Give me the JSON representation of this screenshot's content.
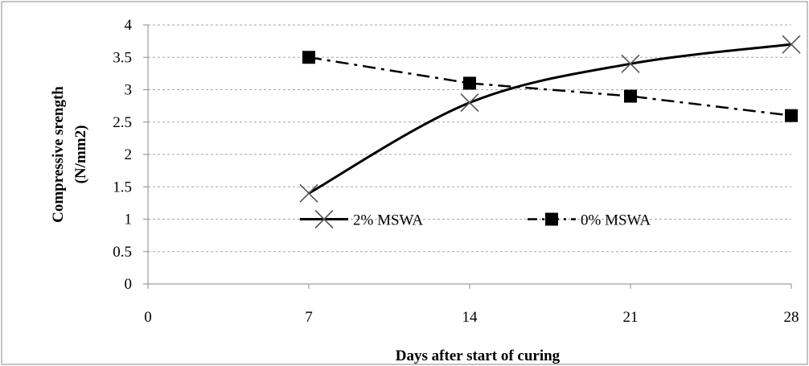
{
  "chart_data": {
    "type": "line",
    "title": "",
    "xlabel": "Days after start of curing",
    "ylabel": "Compressive srength (N/mm2)",
    "ylabel_lines": [
      "Compressive srength",
      "(N/mm2)"
    ],
    "xlim": [
      0,
      28
    ],
    "ylim": [
      0,
      4
    ],
    "x_ticks": [
      0,
      7,
      14,
      21,
      28
    ],
    "y_ticks": [
      0,
      0.5,
      1,
      1.5,
      2,
      2.5,
      3,
      3.5,
      4
    ],
    "y_tick_labels": [
      "0",
      "0.5",
      "1",
      "1.5",
      "2",
      "2.5",
      "3",
      "3.5",
      "4"
    ],
    "grid": "horizontal dashed",
    "legend_position": "inside-center",
    "series": [
      {
        "name": "2% MSWA",
        "x": [
          7,
          14,
          21,
          28
        ],
        "values": [
          1.4,
          2.8,
          3.4,
          3.7
        ],
        "line": "solid-smooth",
        "marker": "x",
        "color": "#000000"
      },
      {
        "name": "0% MSWA",
        "x": [
          7,
          14,
          21,
          28
        ],
        "values": [
          3.5,
          3.1,
          2.9,
          2.6
        ],
        "line": "dash-dot",
        "marker": "square",
        "color": "#000000"
      }
    ]
  }
}
